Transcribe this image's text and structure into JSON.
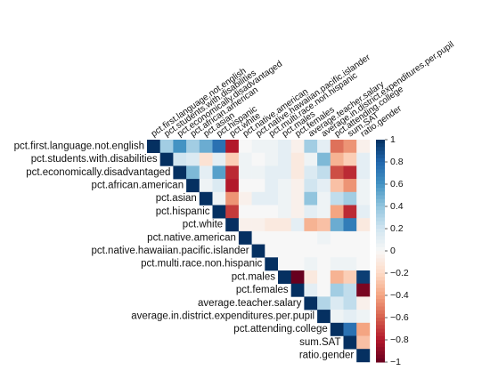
{
  "chart_data": {
    "type": "heatmap",
    "title": "",
    "layout": "upper-triangle correlation matrix",
    "variables": [
      "pct.first.language.not.english",
      "pct.students.with.disabilities",
      "pct.economically.disadvantaged",
      "pct.african.american",
      "pct.asian",
      "pct.hispanic",
      "pct.white",
      "pct.native.american",
      "pct.native.hawaiian.pacific.islander",
      "pct.multi.race.non.hispanic",
      "pct.males",
      "pct.females",
      "average.teacher.salary",
      "average.in.district.expenditures.per.pupil",
      "pct.attending.college",
      "sum.SAT",
      "ratio.gender"
    ],
    "matrix": [
      [
        1,
        0.35,
        0.6,
        0.35,
        0.5,
        0.75,
        -0.8,
        0,
        0.05,
        0.05,
        0.1,
        -0.05,
        0.35,
        0.1,
        -0.55,
        -0.45,
        -0.05
      ],
      [
        null,
        1,
        0.2,
        0.15,
        -0.15,
        0.1,
        -0.25,
        0.05,
        0,
        0.05,
        0.1,
        -0.1,
        0.05,
        0.45,
        -0.35,
        -0.25,
        0.1
      ],
      [
        null,
        null,
        1,
        0.45,
        0.1,
        0.55,
        -0.75,
        0.05,
        0.05,
        0.1,
        0.1,
        -0.1,
        0.15,
        0.25,
        -0.65,
        -0.75,
        0.1
      ],
      [
        null,
        null,
        null,
        1,
        0.05,
        0.15,
        -0.8,
        0,
        0,
        0.1,
        0.05,
        -0.05,
        0.2,
        0.1,
        -0.3,
        -0.45,
        0.05
      ],
      [
        null,
        null,
        null,
        null,
        1,
        0.05,
        -0.45,
        -0.05,
        0.1,
        0.1,
        0.05,
        -0.05,
        0.4,
        0.05,
        0.25,
        0.35,
        0.05
      ],
      [
        null,
        null,
        null,
        null,
        null,
        1,
        -0.7,
        0,
        0,
        0,
        0.05,
        -0.05,
        0.1,
        0.05,
        -0.4,
        -0.75,
        0.1
      ],
      [
        null,
        null,
        null,
        null,
        null,
        null,
        1,
        -0.05,
        -0.05,
        -0.1,
        -0.1,
        0.1,
        -0.35,
        -0.3,
        0.5,
        0.7,
        -0.1
      ],
      [
        null,
        null,
        null,
        null,
        null,
        null,
        null,
        1,
        0,
        0,
        0,
        0,
        0,
        0.05,
        0,
        0,
        0
      ],
      [
        null,
        null,
        null,
        null,
        null,
        null,
        null,
        null,
        1,
        0,
        0,
        0,
        0,
        0,
        0,
        0,
        0
      ],
      [
        null,
        null,
        null,
        null,
        null,
        null,
        null,
        null,
        null,
        1,
        0,
        0,
        0.05,
        0,
        0.05,
        0.05,
        0
      ],
      [
        null,
        null,
        null,
        null,
        null,
        null,
        null,
        null,
        null,
        null,
        1,
        -1,
        -0.1,
        0,
        -0.35,
        -0.25,
        0.95
      ],
      [
        null,
        null,
        null,
        null,
        null,
        null,
        null,
        null,
        null,
        null,
        null,
        1,
        0.1,
        0,
        0.35,
        0.25,
        -0.95
      ],
      [
        null,
        null,
        null,
        null,
        null,
        null,
        null,
        null,
        null,
        null,
        null,
        null,
        1,
        0.3,
        0.15,
        0.25,
        -0.05
      ],
      [
        null,
        null,
        null,
        null,
        null,
        null,
        null,
        null,
        null,
        null,
        null,
        null,
        null,
        1,
        0.05,
        0.1,
        0.05
      ],
      [
        null,
        null,
        null,
        null,
        null,
        null,
        null,
        null,
        null,
        null,
        null,
        null,
        null,
        null,
        1,
        0.75,
        -0.4
      ],
      [
        null,
        null,
        null,
        null,
        null,
        null,
        null,
        null,
        null,
        null,
        null,
        null,
        null,
        null,
        null,
        1,
        -0.3
      ],
      [
        null,
        null,
        null,
        null,
        null,
        null,
        null,
        null,
        null,
        null,
        null,
        null,
        null,
        null,
        null,
        null,
        1
      ]
    ],
    "colorbar": {
      "ticks": [
        "1",
        "0.8",
        "0.6",
        "0.4",
        "0.2",
        "0",
        "−0.2",
        "−0.4",
        "−0.6",
        "−0.8",
        "−1"
      ],
      "range": [
        -1,
        1
      ],
      "colors": {
        "negative_end": "#67001f",
        "neutral": "#f7f7f7",
        "positive_end": "#053061"
      }
    },
    "grid": false,
    "legend_position": "right"
  }
}
